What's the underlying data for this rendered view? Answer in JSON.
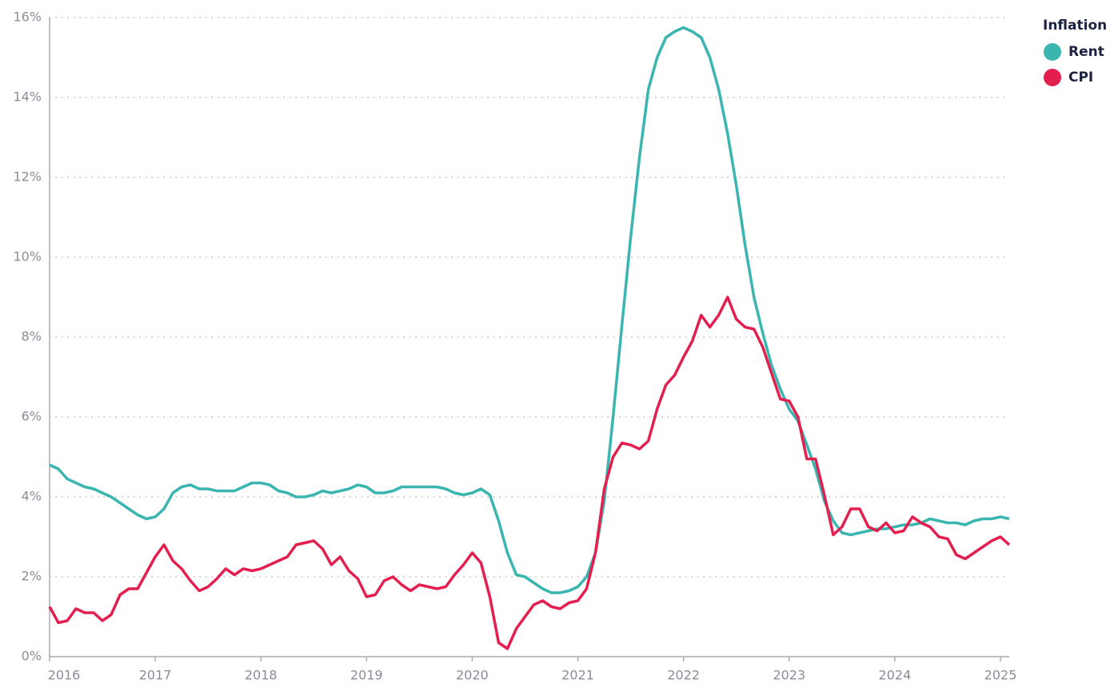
{
  "chart_data": {
    "type": "line",
    "legend_title": "Inflation",
    "legend": "top-right",
    "grid": true,
    "x": [
      2016,
      2016.083,
      2016.167,
      2016.25,
      2016.333,
      2016.417,
      2016.5,
      2016.583,
      2016.667,
      2016.75,
      2016.833,
      2016.917,
      2017,
      2017.083,
      2017.167,
      2017.25,
      2017.333,
      2017.417,
      2017.5,
      2017.583,
      2017.667,
      2017.75,
      2017.833,
      2017.917,
      2018,
      2018.083,
      2018.167,
      2018.25,
      2018.333,
      2018.417,
      2018.5,
      2018.583,
      2018.667,
      2018.75,
      2018.833,
      2018.917,
      2019,
      2019.083,
      2019.167,
      2019.25,
      2019.333,
      2019.417,
      2019.5,
      2019.583,
      2019.667,
      2019.75,
      2019.833,
      2019.917,
      2020,
      2020.083,
      2020.167,
      2020.25,
      2020.333,
      2020.417,
      2020.5,
      2020.583,
      2020.667,
      2020.75,
      2020.833,
      2020.917,
      2021,
      2021.083,
      2021.167,
      2021.25,
      2021.333,
      2021.417,
      2021.5,
      2021.583,
      2021.667,
      2021.75,
      2021.833,
      2021.917,
      2022,
      2022.083,
      2022.167,
      2022.25,
      2022.333,
      2022.417,
      2022.5,
      2022.583,
      2022.667,
      2022.75,
      2022.833,
      2022.917,
      2023,
      2023.083,
      2023.167,
      2023.25,
      2023.333,
      2023.417,
      2023.5,
      2023.583,
      2023.667,
      2023.75,
      2023.833,
      2023.917,
      2024,
      2024.083,
      2024.167,
      2024.25,
      2024.333,
      2024.417,
      2024.5,
      2024.583,
      2024.667,
      2024.75,
      2024.833,
      2024.917,
      2025,
      2025.083
    ],
    "series": [
      {
        "name": "Rent",
        "color": "#3ab5b0",
        "values": [
          4.8,
          4.7,
          4.45,
          4.35,
          4.25,
          4.2,
          4.1,
          4.0,
          3.85,
          3.7,
          3.55,
          3.45,
          3.5,
          3.7,
          4.1,
          4.25,
          4.3,
          4.2,
          4.2,
          4.15,
          4.15,
          4.15,
          4.25,
          4.35,
          4.35,
          4.3,
          4.15,
          4.1,
          4.0,
          4.0,
          4.05,
          4.15,
          4.1,
          4.15,
          4.2,
          4.3,
          4.25,
          4.1,
          4.1,
          4.15,
          4.25,
          4.25,
          4.25,
          4.25,
          4.25,
          4.2,
          4.1,
          4.05,
          4.1,
          4.2,
          4.05,
          3.4,
          2.6,
          2.05,
          2.0,
          1.85,
          1.7,
          1.6,
          1.6,
          1.65,
          1.75,
          2.0,
          2.6,
          3.9,
          6.0,
          8.3,
          10.5,
          12.5,
          14.2,
          15.0,
          15.5,
          15.65,
          15.75,
          15.65,
          15.5,
          15.0,
          14.2,
          13.1,
          11.8,
          10.3,
          9.0,
          8.1,
          7.3,
          6.7,
          6.2,
          5.9,
          5.3,
          4.7,
          3.9,
          3.4,
          3.1,
          3.05,
          3.1,
          3.15,
          3.2,
          3.2,
          3.25,
          3.3,
          3.3,
          3.35,
          3.45,
          3.4,
          3.35,
          3.35,
          3.3,
          3.4,
          3.45,
          3.45,
          3.5,
          3.45
        ]
      },
      {
        "name": "CPI",
        "color": "#e31f4f",
        "values": [
          1.25,
          0.85,
          0.9,
          1.2,
          1.1,
          1.1,
          0.9,
          1.05,
          1.55,
          1.7,
          1.7,
          2.1,
          2.5,
          2.8,
          2.4,
          2.2,
          1.9,
          1.65,
          1.75,
          1.95,
          2.2,
          2.05,
          2.2,
          2.15,
          2.2,
          2.3,
          2.4,
          2.5,
          2.8,
          2.85,
          2.9,
          2.7,
          2.3,
          2.5,
          2.15,
          1.95,
          1.5,
          1.55,
          1.9,
          2.0,
          1.8,
          1.65,
          1.8,
          1.75,
          1.7,
          1.75,
          2.05,
          2.3,
          2.6,
          2.35,
          1.5,
          0.35,
          0.2,
          0.7,
          1.0,
          1.3,
          1.4,
          1.25,
          1.2,
          1.35,
          1.4,
          1.7,
          2.6,
          4.2,
          5.0,
          5.35,
          5.3,
          5.2,
          5.4,
          6.2,
          6.8,
          7.05,
          7.5,
          7.9,
          8.55,
          8.25,
          8.55,
          9.0,
          8.45,
          8.25,
          8.2,
          7.75,
          7.1,
          6.45,
          6.4,
          6.0,
          4.95,
          4.95,
          4.05,
          3.05,
          3.25,
          3.7,
          3.7,
          3.25,
          3.15,
          3.35,
          3.1,
          3.15,
          3.5,
          3.35,
          3.25,
          3.0,
          2.95,
          2.55,
          2.45,
          2.6,
          2.75,
          2.9,
          3.0,
          2.8
        ]
      }
    ],
    "xlim": [
      2016,
      2025.083
    ],
    "xticks": [
      2016,
      2017,
      2018,
      2019,
      2020,
      2021,
      2022,
      2023,
      2024,
      2025
    ],
    "ylim": [
      0,
      16
    ],
    "yticks": [
      {
        "value": 0,
        "label": "0%"
      },
      {
        "value": 2,
        "label": "2%"
      },
      {
        "value": 4,
        "label": "4%"
      },
      {
        "value": 6,
        "label": "6%"
      },
      {
        "value": 8,
        "label": "8%"
      },
      {
        "value": 10,
        "label": "10%"
      },
      {
        "value": 12,
        "label": "12%"
      },
      {
        "value": 14,
        "label": "14%"
      },
      {
        "value": 16,
        "label": "16%"
      }
    ]
  }
}
